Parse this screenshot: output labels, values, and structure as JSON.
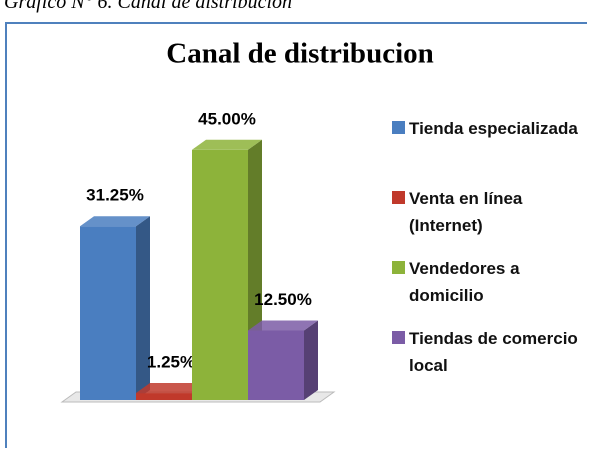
{
  "caption": "Gráfico N° 6. Canal de distribución",
  "chart_data": {
    "type": "bar3d",
    "title": "Canal de distribucion",
    "categories": [
      "Tienda especializada",
      "Venta en línea (Internet)",
      "Vendedores a domicilio",
      "Tiendas de comercio local"
    ],
    "values": [
      31.25,
      1.25,
      45,
      12.5
    ],
    "value_labels": [
      "31.25%",
      "1.25%",
      "45.00%",
      "12.50%"
    ],
    "colors": [
      "#4a7ec0",
      "#c0392b",
      "#8db33a",
      "#7b5ca6"
    ],
    "ylim": [
      0,
      50
    ],
    "legend": "right"
  }
}
